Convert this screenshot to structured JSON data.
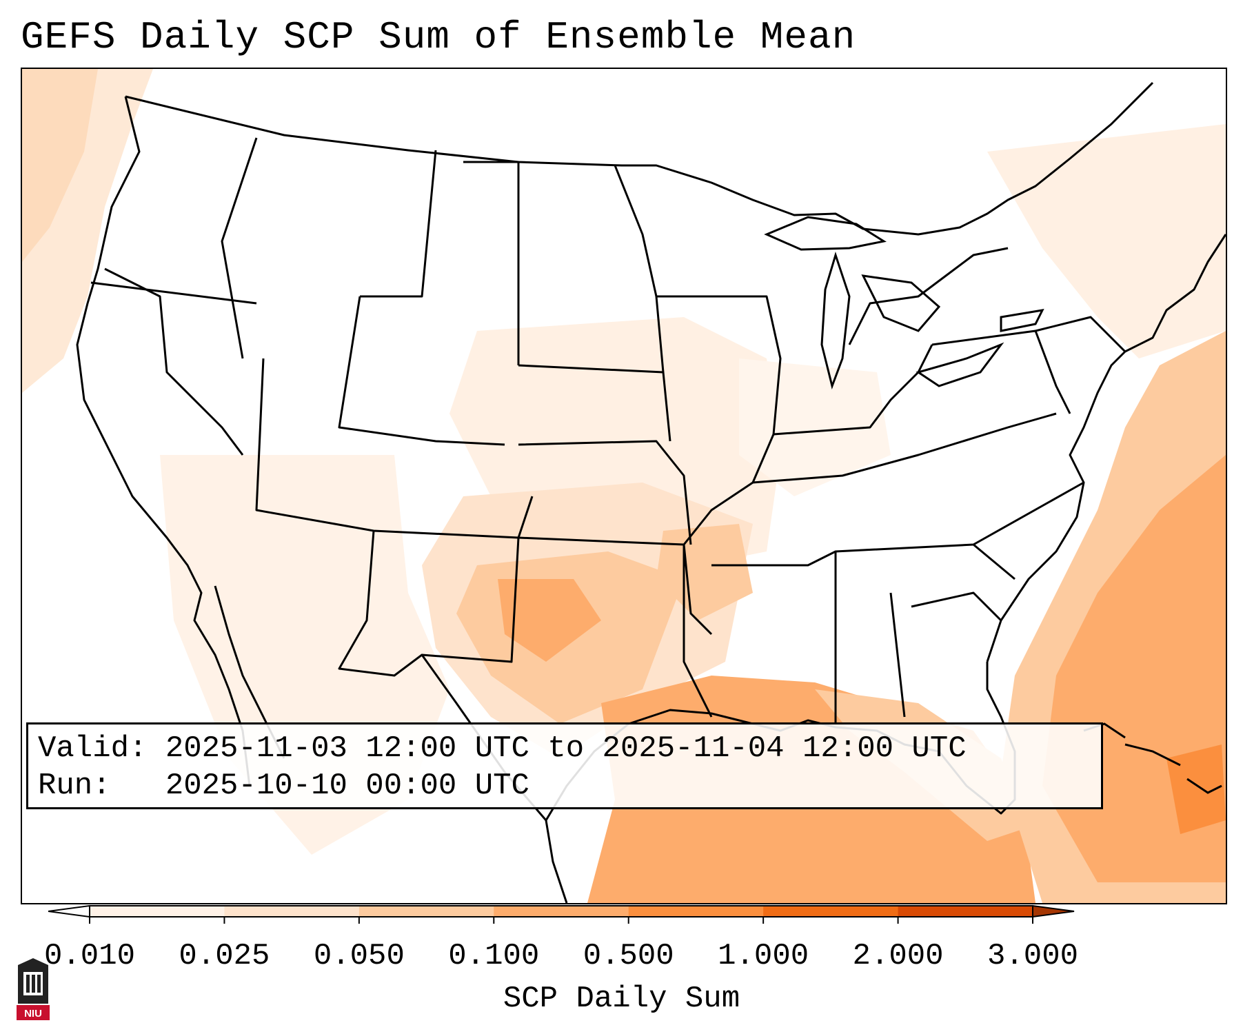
{
  "title": "GEFS Daily SCP Sum of Ensemble Mean",
  "info": {
    "valid_label": "Valid:",
    "valid_value": "2025-11-03 12:00 UTC to 2025-11-04 12:00 UTC",
    "run_label": "Run:",
    "run_value": "2025-10-10 00:00 UTC"
  },
  "colorbar": {
    "label": "SCP Daily Sum",
    "ticks": [
      "0.010",
      "0.025",
      "0.050",
      "0.100",
      "0.500",
      "1.000",
      "2.000",
      "3.000"
    ],
    "colors": [
      "#fff2e7",
      "#fee3cc",
      "#fdcb9f",
      "#fdac6c",
      "#fb8f3e",
      "#f06c15",
      "#d84a05"
    ],
    "under_color": "#ffffff",
    "over_color": "#a53603"
  },
  "logo": {
    "text": "NIU"
  },
  "map": {
    "region": "Contiguous United States, northern Mexico, Gulf of Mexico, western Atlantic",
    "field": "SCP daily sum",
    "regions": [
      {
        "name": "Gulf of Mexico",
        "level": "0.100-0.500"
      },
      {
        "name": "Western Atlantic off Southeast coast",
        "level": "0.100-0.500"
      },
      {
        "name": "Northeast of Bahamas",
        "level": "0.500-1.000"
      },
      {
        "name": "Texas / Oklahoma / Arkansas",
        "level": "0.050-0.500"
      },
      {
        "name": "Central Plains",
        "level": "0.010-0.050"
      },
      {
        "name": "Pacific Northwest coast",
        "level": "0.010-0.050"
      }
    ]
  }
}
